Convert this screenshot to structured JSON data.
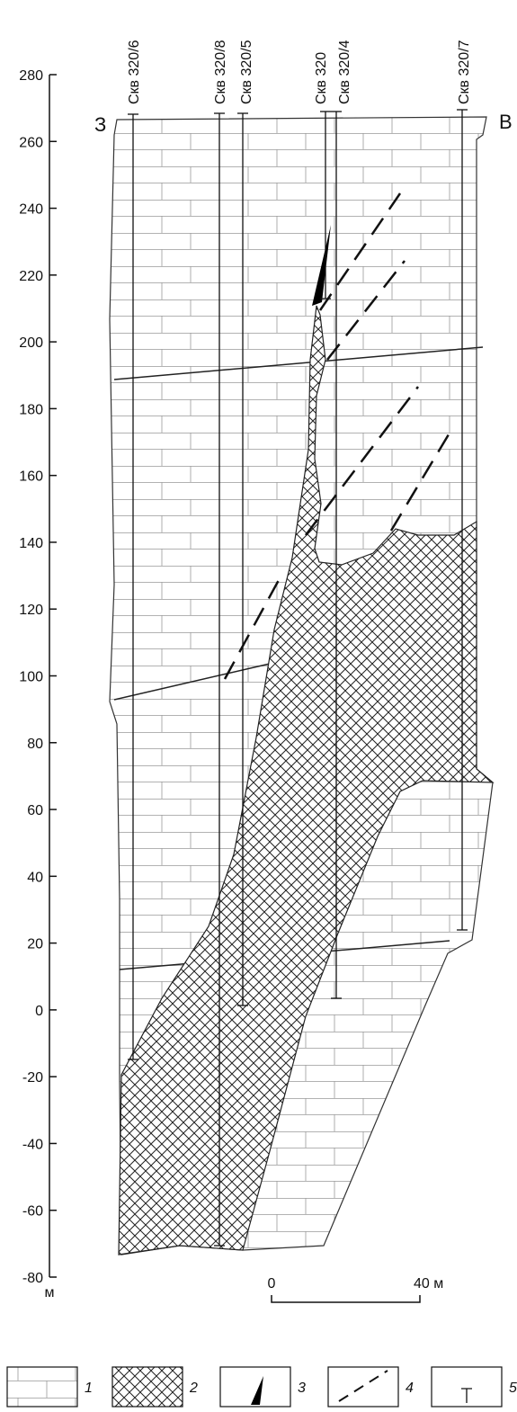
{
  "axis": {
    "ticks": [
      280,
      260,
      240,
      220,
      200,
      180,
      160,
      140,
      120,
      100,
      80,
      60,
      40,
      20,
      0,
      -20,
      -40,
      -60,
      -80
    ],
    "range": [
      -80,
      280
    ],
    "unit": "м"
  },
  "directions": {
    "west": "З",
    "east": "В"
  },
  "wells": [
    "Скв 320/6",
    "Скв 320/8",
    "Скв 320/5",
    "Скв 320",
    "Скв 320/4",
    "Скв 320/7"
  ],
  "scale_bar": {
    "start": "0",
    "end": "40 м"
  },
  "legend": [
    "1",
    "2",
    "3",
    "4",
    "5"
  ]
}
